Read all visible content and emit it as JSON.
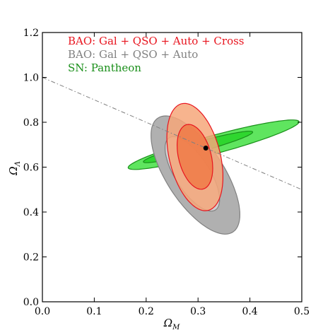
{
  "chart_data": {
    "type": "contour",
    "xlabel": "Ω",
    "xlabel_sub": "M",
    "ylabel": "Ω",
    "ylabel_sub": "Λ",
    "xlim": [
      0.0,
      0.5
    ],
    "ylim": [
      0.0,
      1.2
    ],
    "grid": false,
    "legend_position": "top-left",
    "x_ticks": [
      0.0,
      0.1,
      0.2,
      0.3,
      0.4,
      0.5
    ],
    "x_tick_labels": [
      "0.0",
      "0.1",
      "0.2",
      "0.3",
      "0.4",
      "0.5"
    ],
    "y_ticks": [
      0.0,
      0.2,
      0.4,
      0.6,
      0.8,
      1.0,
      1.2
    ],
    "y_tick_labels": [
      "0.0",
      "0.2",
      "0.4",
      "0.6",
      "0.8",
      "1.0",
      "1.2"
    ],
    "series": [
      {
        "name": "SN: Pantheon",
        "color": "#1a8f1a",
        "fill_outer": "#5fe55f",
        "fill_inner": "#2fd62f",
        "contours": [
          {
            "level": "outer",
            "center": [
              0.33,
              0.7
            ],
            "semi_axes": [
              0.195,
              0.036
            ],
            "angle_deg": 33
          },
          {
            "level": "inner",
            "center": [
              0.3,
              0.69
            ],
            "semi_axes": [
              0.125,
              0.02
            ],
            "angle_deg": 33
          }
        ]
      },
      {
        "name": "BAO: Gal + QSO + Auto",
        "color": "#808080",
        "fill_outer": "#b0b0b0",
        "fill_inner": "#d0d0d0",
        "contours": [
          {
            "level": "outer",
            "center": [
              0.295,
              0.565
            ],
            "semi_axes": [
              0.062,
              0.27
            ],
            "angle_deg": 13
          },
          {
            "level": "inner",
            "center": [
              0.289,
              0.57
            ],
            "semi_axes": [
              0.037,
              0.17
            ],
            "angle_deg": 13
          }
        ]
      },
      {
        "name": "BAO: Gal + QSO + Auto + Cross",
        "color": "#e8141e",
        "fill_outer": "#f6a77a",
        "fill_inner": "#f07a46",
        "contours": [
          {
            "level": "outer",
            "center": [
              0.294,
              0.645
            ],
            "semi_axes": [
              0.05,
              0.24
            ],
            "angle_deg": 5
          },
          {
            "level": "inner",
            "center": [
              0.294,
              0.646
            ],
            "semi_axes": [
              0.032,
              0.145
            ],
            "angle_deg": 5
          }
        ]
      }
    ],
    "lines": [
      {
        "style": "dash-dot",
        "color": "#808080",
        "from": [
          0.0,
          1.0
        ],
        "to": [
          0.5,
          0.5
        ]
      }
    ],
    "points": [
      {
        "x": 0.315,
        "y": 0.685,
        "color": "#000000"
      }
    ]
  }
}
